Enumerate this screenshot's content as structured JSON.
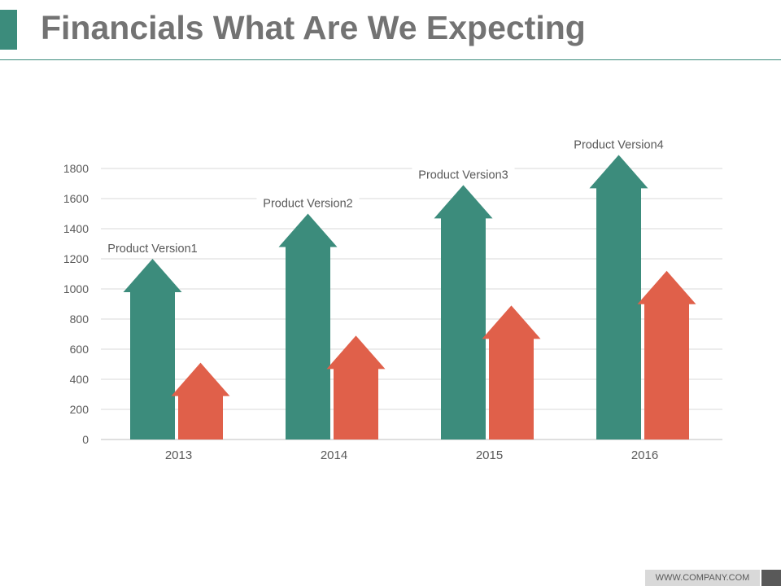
{
  "slide": {
    "title": "Financials What Are We Expecting",
    "footer_url": "WWW.COMPANY.COM"
  },
  "colors": {
    "series1": "#3c8c7c",
    "series2": "#e0604a",
    "accent": "#3c8c7c",
    "gridline": "#d9d9d9",
    "axis_text": "#595959"
  },
  "chart_data": {
    "type": "bar",
    "bar_shape": "arrow",
    "categories": [
      "2013",
      "2014",
      "2015",
      "2016"
    ],
    "series": [
      {
        "values": [
          1200,
          1500,
          1690,
          1890
        ]
      },
      {
        "values": [
          510,
          690,
          890,
          1120
        ]
      }
    ],
    "annotations": [
      "Product Version1",
      "Product Version2",
      "Product Version3",
      "Product Version4"
    ],
    "ylim": [
      0,
      1800
    ],
    "yticks": [
      0,
      200,
      400,
      600,
      800,
      1000,
      1200,
      1400,
      1600,
      1800
    ],
    "grid": true,
    "legend": "none"
  }
}
